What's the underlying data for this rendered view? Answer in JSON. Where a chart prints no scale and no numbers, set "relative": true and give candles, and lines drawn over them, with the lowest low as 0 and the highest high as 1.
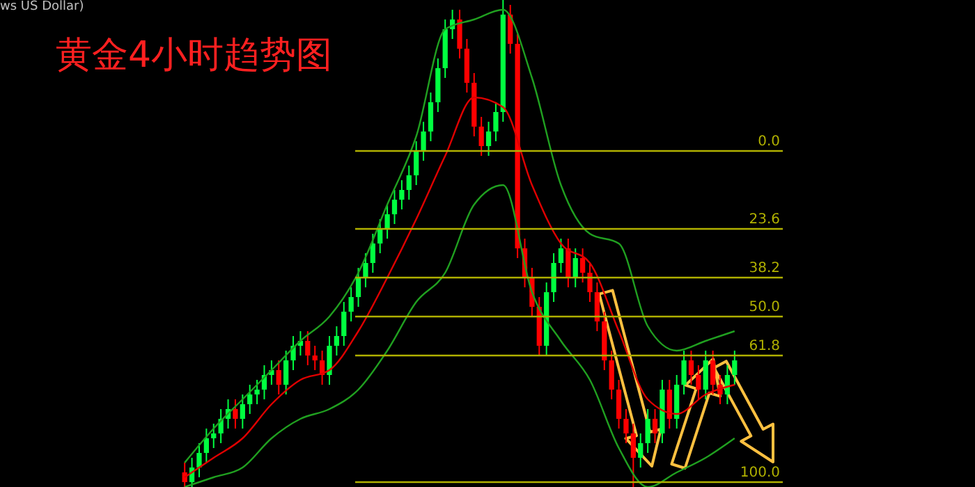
{
  "chart_data": {
    "type": "candlestick",
    "title": "黄金4小时趋势图",
    "annotations": [
      "ws US Dollar)",
      {
        "text": "0.0",
        "y": 0.69
      },
      {
        "text": "23.6",
        "y": 0.53
      },
      {
        "text": "38.2",
        "y": 0.43
      },
      {
        "text": "50.0",
        "y": 0.35
      },
      {
        "text": "61.8",
        "y": 0.27
      },
      {
        "text": "100.0",
        "y": 0.01
      }
    ],
    "relative": true,
    "categories": [
      null,
      null,
      null,
      null,
      null,
      null,
      null,
      null,
      null,
      null,
      null,
      null,
      null,
      null,
      null,
      null,
      null,
      null,
      null,
      null,
      null,
      null,
      null,
      null,
      null,
      null,
      null,
      null,
      null,
      null,
      null,
      null,
      null,
      null,
      null,
      null,
      null,
      null,
      null,
      null,
      null,
      null,
      null,
      null,
      null,
      null,
      null,
      null,
      null,
      null,
      null,
      null,
      null,
      null,
      null,
      null,
      null,
      null,
      null,
      null,
      null,
      null,
      null,
      null,
      null,
      null,
      null,
      null,
      null,
      null,
      null,
      null,
      null,
      null,
      null,
      null,
      null
    ],
    "ohlc": [
      [
        0.03,
        0.05,
        0.0,
        0.01
      ],
      [
        0.01,
        0.06,
        0.0,
        0.04
      ],
      [
        0.04,
        0.09,
        0.02,
        0.07
      ],
      [
        0.07,
        0.12,
        0.05,
        0.1
      ],
      [
        0.1,
        0.13,
        0.08,
        0.11
      ],
      [
        0.11,
        0.16,
        0.09,
        0.14
      ],
      [
        0.14,
        0.18,
        0.12,
        0.16
      ],
      [
        0.16,
        0.18,
        0.12,
        0.14
      ],
      [
        0.14,
        0.19,
        0.12,
        0.17
      ],
      [
        0.17,
        0.21,
        0.15,
        0.19
      ],
      [
        0.19,
        0.22,
        0.17,
        0.2
      ],
      [
        0.2,
        0.25,
        0.18,
        0.23
      ],
      [
        0.23,
        0.26,
        0.21,
        0.24
      ],
      [
        0.24,
        0.26,
        0.19,
        0.21
      ],
      [
        0.21,
        0.28,
        0.19,
        0.26
      ],
      [
        0.26,
        0.31,
        0.24,
        0.29
      ],
      [
        0.29,
        0.32,
        0.27,
        0.3
      ],
      [
        0.3,
        0.32,
        0.25,
        0.27
      ],
      [
        0.27,
        0.29,
        0.24,
        0.26
      ],
      [
        0.26,
        0.28,
        0.21,
        0.23
      ],
      [
        0.23,
        0.31,
        0.21,
        0.29
      ],
      [
        0.29,
        0.33,
        0.27,
        0.31
      ],
      [
        0.31,
        0.38,
        0.29,
        0.36
      ],
      [
        0.36,
        0.41,
        0.34,
        0.39
      ],
      [
        0.39,
        0.45,
        0.37,
        0.43
      ],
      [
        0.43,
        0.48,
        0.41,
        0.46
      ],
      [
        0.46,
        0.52,
        0.44,
        0.5
      ],
      [
        0.5,
        0.55,
        0.48,
        0.53
      ],
      [
        0.53,
        0.58,
        0.51,
        0.56
      ],
      [
        0.56,
        0.61,
        0.54,
        0.59
      ],
      [
        0.59,
        0.63,
        0.57,
        0.61
      ],
      [
        0.61,
        0.66,
        0.59,
        0.64
      ],
      [
        0.64,
        0.71,
        0.62,
        0.69
      ],
      [
        0.69,
        0.75,
        0.67,
        0.73
      ],
      [
        0.73,
        0.81,
        0.71,
        0.79
      ],
      [
        0.79,
        0.88,
        0.77,
        0.86
      ],
      [
        0.86,
        0.96,
        0.84,
        0.94
      ],
      [
        0.94,
        0.98,
        0.92,
        0.96
      ],
      [
        0.96,
        0.98,
        0.88,
        0.9
      ],
      [
        0.9,
        0.92,
        0.81,
        0.83
      ],
      [
        0.83,
        0.85,
        0.72,
        0.74
      ],
      [
        0.74,
        0.76,
        0.68,
        0.7
      ],
      [
        0.7,
        0.75,
        0.68,
        0.73
      ],
      [
        0.73,
        0.79,
        0.71,
        0.77
      ],
      [
        0.77,
        1.0,
        0.75,
        0.97
      ],
      [
        0.97,
        0.99,
        0.89,
        0.91
      ],
      [
        0.91,
        0.93,
        0.47,
        0.49
      ],
      [
        0.49,
        0.51,
        0.41,
        0.43
      ],
      [
        0.43,
        0.45,
        0.35,
        0.37
      ],
      [
        0.37,
        0.39,
        0.27,
        0.29
      ],
      [
        0.29,
        0.42,
        0.27,
        0.4
      ],
      [
        0.4,
        0.48,
        0.38,
        0.46
      ],
      [
        0.46,
        0.51,
        0.44,
        0.49
      ],
      [
        0.49,
        0.51,
        0.41,
        0.43
      ],
      [
        0.43,
        0.49,
        0.41,
        0.47
      ],
      [
        0.47,
        0.49,
        0.42,
        0.44
      ],
      [
        0.44,
        0.46,
        0.38,
        0.4
      ],
      [
        0.4,
        0.42,
        0.32,
        0.34
      ],
      [
        0.34,
        0.36,
        0.24,
        0.26
      ],
      [
        0.26,
        0.28,
        0.18,
        0.2
      ],
      [
        0.2,
        0.22,
        0.12,
        0.14
      ],
      [
        0.14,
        0.16,
        0.09,
        0.11
      ],
      [
        0.11,
        0.13,
        0.0,
        0.06
      ],
      [
        0.06,
        0.11,
        0.04,
        0.09
      ],
      [
        0.09,
        0.16,
        0.07,
        0.14
      ],
      [
        0.14,
        0.16,
        0.09,
        0.11
      ],
      [
        0.11,
        0.22,
        0.09,
        0.2
      ],
      [
        0.2,
        0.22,
        0.12,
        0.14
      ],
      [
        0.14,
        0.23,
        0.12,
        0.21
      ],
      [
        0.21,
        0.28,
        0.19,
        0.26
      ],
      [
        0.26,
        0.28,
        0.21,
        0.23
      ],
      [
        0.23,
        0.25,
        0.18,
        0.2
      ],
      [
        0.2,
        0.28,
        0.18,
        0.26
      ],
      [
        0.26,
        0.28,
        0.19,
        0.21
      ],
      [
        0.21,
        0.23,
        0.17,
        0.19
      ],
      [
        0.19,
        0.25,
        0.17,
        0.23
      ],
      [
        0.23,
        0.28,
        0.21,
        0.26
      ]
    ],
    "colors": [
      "#ff0000",
      "#00ff40",
      "#00ff40",
      "#00ff40",
      "#00ff40",
      "#00ff40",
      "#00ff40",
      "#ff0000",
      "#00ff40",
      "#00ff40",
      "#00ff40",
      "#00ff40",
      "#00ff40",
      "#ff0000",
      "#00ff40",
      "#00ff40",
      "#00ff40",
      "#ff0000",
      "#ff0000",
      "#ff0000",
      "#00ff40",
      "#00ff40",
      "#00ff40",
      "#00ff40",
      "#00ff40",
      "#00ff40",
      "#00ff40",
      "#00ff40",
      "#00ff40",
      "#00ff40",
      "#00ff40",
      "#00ff40",
      "#00ff40",
      "#00ff40",
      "#00ff40",
      "#00ff40",
      "#00ff40",
      "#00ff40",
      "#ff0000",
      "#ff0000",
      "#ff0000",
      "#ff0000",
      "#00ff40",
      "#00ff40",
      "#00ff40",
      "#ff0000",
      "#ff0000",
      "#ff0000",
      "#ff0000",
      "#ff0000",
      "#00ff40",
      "#00ff40",
      "#00ff40",
      "#ff0000",
      "#00ff40",
      "#ff0000",
      "#ff0000",
      "#ff0000",
      "#ff0000",
      "#ff0000",
      "#ff0000",
      "#ff0000",
      "#ff0000",
      "#00ff40",
      "#00ff40",
      "#ff0000",
      "#00ff40",
      "#ff0000",
      "#00ff40",
      "#00ff40",
      "#ff0000",
      "#ff0000",
      "#00ff40",
      "#ff0000",
      "#ff0000",
      "#00ff40",
      "#00ff40"
    ],
    "series": [
      {
        "type": "line",
        "color": "#e00000",
        "values": [
          0.02,
          null,
          null,
          null,
          0.06,
          null,
          null,
          null,
          0.1,
          null,
          null,
          null,
          0.17,
          null,
          null,
          null,
          0.22,
          null,
          null,
          null,
          0.24,
          null,
          null,
          null,
          0.32,
          null,
          null,
          null,
          0.43,
          null,
          null,
          null,
          0.55,
          null,
          null,
          null,
          0.68,
          null,
          null,
          null,
          0.8,
          null,
          null,
          null,
          0.78,
          null,
          null,
          null,
          0.62,
          null,
          null,
          null,
          0.5,
          null,
          null,
          null,
          0.46,
          null,
          null,
          null,
          0.32,
          null,
          null,
          null,
          0.18,
          null,
          null,
          null,
          0.15,
          null,
          null,
          null,
          0.19,
          null,
          null,
          null,
          0.21
        ]
      },
      {
        "type": "line",
        "color": "#20a020",
        "values": [
          0.05,
          null,
          null,
          null,
          0.12,
          null,
          null,
          null,
          0.18,
          null,
          null,
          null,
          0.24,
          null,
          null,
          null,
          0.3,
          null,
          null,
          null,
          0.35,
          null,
          null,
          null,
          0.44,
          null,
          null,
          null,
          0.58,
          null,
          null,
          null,
          0.72,
          null,
          null,
          null,
          0.94,
          null,
          null,
          null,
          0.96,
          null,
          null,
          null,
          0.98,
          null,
          null,
          null,
          0.84,
          null,
          null,
          null,
          0.62,
          null,
          null,
          null,
          0.52,
          null,
          null,
          null,
          0.5,
          null,
          null,
          null,
          0.33,
          null,
          null,
          null,
          0.28,
          null,
          null,
          null,
          0.3,
          null,
          null,
          null,
          0.32
        ]
      },
      {
        "type": "line",
        "color": "#20a020",
        "values": [
          0.0,
          null,
          null,
          null,
          0.02,
          null,
          null,
          null,
          0.04,
          null,
          null,
          null,
          0.1,
          null,
          null,
          null,
          0.14,
          null,
          null,
          null,
          0.16,
          null,
          null,
          null,
          0.2,
          null,
          null,
          null,
          0.28,
          null,
          null,
          null,
          0.38,
          null,
          null,
          null,
          0.44,
          null,
          null,
          null,
          0.58,
          null,
          null,
          null,
          0.62,
          null,
          null,
          null,
          0.4,
          null,
          null,
          null,
          0.3,
          null,
          null,
          null,
          0.22,
          null,
          null,
          null,
          0.08,
          null,
          null,
          null,
          0.0,
          null,
          null,
          null,
          0.03,
          null,
          null,
          null,
          0.06,
          null,
          null,
          null,
          0.1
        ]
      }
    ],
    "ref_lines": [
      {
        "axis": "y",
        "value": 0.69,
        "color": "#b0b000"
      },
      {
        "axis": "y",
        "value": 0.53,
        "color": "#b0b000"
      },
      {
        "axis": "y",
        "value": 0.43,
        "color": "#b0b000"
      },
      {
        "axis": "y",
        "value": 0.35,
        "color": "#b0b000"
      },
      {
        "axis": "y",
        "value": 0.27,
        "color": "#b0b000"
      },
      {
        "axis": "y",
        "value": 0.01,
        "color": "#b0b000"
      }
    ]
  }
}
